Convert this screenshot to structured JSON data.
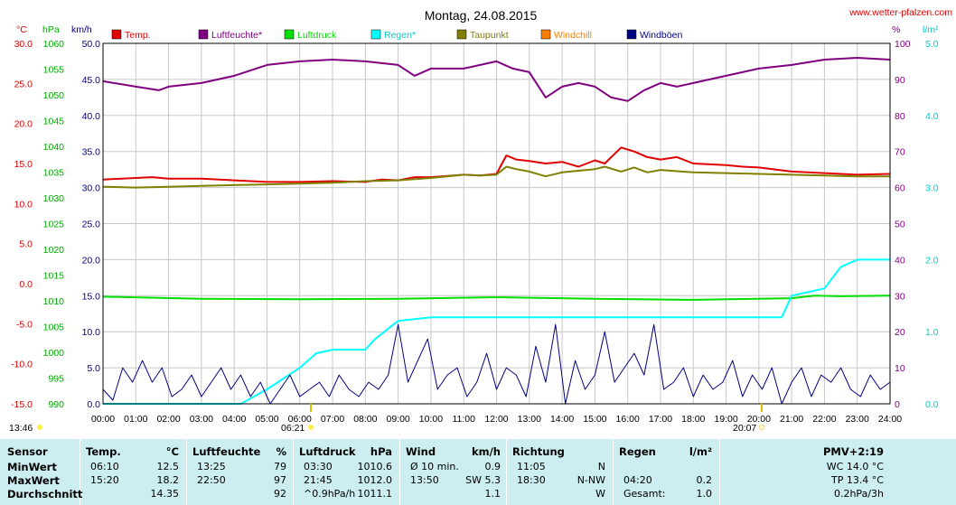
{
  "title": "Montag, 24.08.2015",
  "site": "www.wetter-pfalzen.com",
  "colors": {
    "temp": "#e00000",
    "humidity": "#800080",
    "pressure": "#00dd00",
    "rain": "#00ffff",
    "dewpoint": "#808000",
    "windchill": "#ff8000",
    "gust": "#000080",
    "grid": "#c8c8c8",
    "table_bg": "#cdeef0"
  },
  "axis_units": {
    "temp": "°C",
    "pressure": "hPa",
    "wind": "km/h",
    "humidity": "%",
    "rain": "l/m²"
  },
  "axis_ticks": {
    "temp": [
      "30.0",
      "25.0",
      "20.0",
      "15.0",
      "10.0",
      "5.0",
      "0.0",
      "-5.0",
      "-10.0",
      "-15.0"
    ],
    "pressure": [
      "1060",
      "1055",
      "1050",
      "1045",
      "1040",
      "1035",
      "1030",
      "1025",
      "1020",
      "1015",
      "1010",
      "1005",
      "1000",
      "995",
      "990"
    ],
    "wind": [
      "50.0",
      "45.0",
      "40.0",
      "35.0",
      "30.0",
      "25.0",
      "20.0",
      "15.0",
      "10.0",
      "5.0",
      "0.0"
    ],
    "humidity": [
      "100",
      "90",
      "80",
      "70",
      "60",
      "50",
      "40",
      "30",
      "20",
      "10",
      "0"
    ],
    "rain": [
      "5.0",
      "4.0",
      "3.0",
      "2.0",
      "1.0",
      "0.0"
    ]
  },
  "sun_times": {
    "left_time": "13:46",
    "sunrise": "06:21",
    "sunset": "20:07"
  },
  "chart_data": {
    "type": "line",
    "title": "Montag, 24.08.2015",
    "x_categories": [
      "00:00",
      "01:00",
      "02:00",
      "03:00",
      "04:00",
      "05:00",
      "06:00",
      "07:00",
      "08:00",
      "09:00",
      "10:00",
      "11:00",
      "12:00",
      "13:00",
      "14:00",
      "15:00",
      "16:00",
      "17:00",
      "18:00",
      "19:00",
      "20:00",
      "21:00",
      "22:00",
      "23:00",
      "24:00"
    ],
    "xlim": [
      0,
      24
    ],
    "grid": true,
    "legend_position": "top",
    "series": [
      {
        "name": "Temp.",
        "axis": "°C",
        "ylim": [
          -15,
          30
        ],
        "color_key": "temp",
        "x": [
          0,
          1,
          1.5,
          2,
          3,
          4,
          5,
          6,
          7,
          8,
          8.5,
          9,
          9.5,
          10,
          11,
          11.5,
          12,
          12.3,
          12.6,
          13,
          13.5,
          14,
          14.5,
          15,
          15.3,
          15.8,
          16.2,
          16.6,
          17,
          17.5,
          18,
          18.5,
          19,
          19.5,
          20,
          21,
          22,
          23,
          24
        ],
        "values": [
          13.0,
          13.2,
          13.3,
          13.1,
          13.1,
          12.9,
          12.7,
          12.7,
          12.8,
          12.7,
          13.0,
          12.9,
          13.3,
          13.3,
          13.6,
          13.5,
          13.7,
          16.0,
          15.5,
          15.3,
          15.0,
          15.2,
          14.6,
          15.4,
          15.0,
          17.0,
          16.5,
          15.8,
          15.5,
          15.8,
          15.0,
          14.9,
          14.8,
          14.6,
          14.5,
          14.0,
          13.8,
          13.6,
          13.7
        ]
      },
      {
        "name": "Luftfeuchte*",
        "axis": "%",
        "ylim": [
          0,
          100
        ],
        "color_key": "humidity",
        "x": [
          0,
          1,
          1.7,
          2,
          3,
          4,
          5,
          6,
          7,
          8,
          9,
          9.5,
          10,
          11,
          11.5,
          12,
          12.5,
          13,
          13.5,
          14,
          14.5,
          15,
          15.5,
          16,
          16.5,
          17,
          17.5,
          18,
          19,
          20,
          21,
          22,
          23,
          24
        ],
        "values": [
          89.5,
          88,
          87,
          88,
          89,
          91,
          94,
          95,
          95.5,
          95,
          94,
          91,
          93,
          93,
          94,
          95,
          93,
          92,
          85,
          88,
          89,
          88,
          85,
          84,
          87,
          89,
          88,
          89,
          91,
          93,
          94,
          95.5,
          96,
          95.5
        ]
      },
      {
        "name": "Luftdruck",
        "axis": "hPa",
        "ylim": [
          990,
          1060
        ],
        "color_key": "pressure",
        "x": [
          0,
          3,
          6,
          9,
          12,
          15,
          18,
          21,
          21.7,
          22.5,
          24
        ],
        "values": [
          1010.8,
          1010.4,
          1010.3,
          1010.4,
          1010.7,
          1010.4,
          1010.2,
          1010.5,
          1011.0,
          1010.9,
          1011.0
        ]
      },
      {
        "name": "Regen*",
        "axis": "l/m²",
        "ylim": [
          0,
          5
        ],
        "color_key": "rain",
        "x": [
          0,
          4.2,
          4.4,
          5,
          6,
          6.5,
          7,
          8,
          8.3,
          9,
          10,
          12,
          15,
          18,
          20,
          20.7,
          21,
          22,
          22.5,
          23,
          24
        ],
        "values": [
          0,
          0,
          0.05,
          0.2,
          0.5,
          0.7,
          0.75,
          0.75,
          0.9,
          1.15,
          1.2,
          1.2,
          1.2,
          1.2,
          1.2,
          1.2,
          1.5,
          1.6,
          1.9,
          2.0,
          2.0
        ]
      },
      {
        "name": "Taupunkt",
        "axis": "°C",
        "ylim": [
          -15,
          30
        ],
        "color_key": "dewpoint",
        "x": [
          0,
          1,
          2,
          3,
          4,
          5,
          6,
          7,
          8,
          9,
          10,
          11,
          11.5,
          12,
          12.3,
          12.6,
          13,
          13.5,
          14,
          15,
          15.3,
          15.8,
          16.2,
          16.6,
          17,
          18,
          19,
          20,
          21,
          22,
          23,
          24
        ],
        "values": [
          12.1,
          12.0,
          12.1,
          12.2,
          12.3,
          12.4,
          12.5,
          12.6,
          12.8,
          12.9,
          13.2,
          13.6,
          13.5,
          13.6,
          14.6,
          14.3,
          14.0,
          13.4,
          13.9,
          14.3,
          14.6,
          14.0,
          14.5,
          13.9,
          14.2,
          13.9,
          13.8,
          13.7,
          13.6,
          13.5,
          13.4,
          13.4
        ]
      },
      {
        "name": "Windchill",
        "axis": "°C",
        "ylim": [
          -15,
          30
        ],
        "color_key": "windchill",
        "x": [],
        "values": []
      },
      {
        "name": "Windböen",
        "axis": "km/h",
        "ylim": [
          0,
          50
        ],
        "color_key": "gust",
        "x": [
          0,
          0.3,
          0.6,
          0.9,
          1.2,
          1.5,
          1.8,
          2.1,
          2.4,
          2.7,
          3,
          3.3,
          3.6,
          3.9,
          4.2,
          4.5,
          4.8,
          5.1,
          5.4,
          5.7,
          6,
          6.3,
          6.6,
          6.9,
          7.2,
          7.5,
          7.8,
          8.1,
          8.4,
          8.7,
          9,
          9.3,
          9.6,
          9.9,
          10.2,
          10.5,
          10.8,
          11.1,
          11.4,
          11.7,
          12,
          12.3,
          12.6,
          12.9,
          13.2,
          13.5,
          13.8,
          14.1,
          14.4,
          14.7,
          15,
          15.3,
          15.6,
          15.9,
          16.2,
          16.5,
          16.8,
          17.1,
          17.4,
          17.7,
          18,
          18.3,
          18.6,
          18.9,
          19.2,
          19.5,
          19.8,
          20.1,
          20.4,
          20.7,
          21,
          21.3,
          21.6,
          21.9,
          22.2,
          22.5,
          22.8,
          23.1,
          23.4,
          23.7,
          24
        ],
        "values": [
          2,
          0.5,
          5,
          3,
          6,
          3,
          5,
          1,
          2,
          4,
          1,
          3,
          5,
          2,
          4,
          1,
          3,
          0,
          2,
          4,
          1,
          2,
          3,
          1,
          4,
          2,
          1,
          3,
          2,
          4,
          11,
          3,
          6,
          9,
          2,
          4,
          5,
          1,
          3,
          7,
          2,
          5,
          4,
          1,
          8,
          3,
          11,
          0,
          6,
          2,
          4,
          10,
          3,
          5,
          7,
          4,
          11,
          2,
          3,
          5,
          1,
          4,
          2,
          3,
          6,
          1,
          4,
          2,
          5,
          0,
          3,
          5,
          1,
          4,
          3,
          5,
          2,
          1,
          4,
          2,
          3
        ]
      }
    ]
  },
  "table": {
    "headers": {
      "sensor": "Sensor",
      "temp": "Temp.",
      "temp_unit": "°C",
      "hum": "Luftfeuchte",
      "hum_unit": "%",
      "press": "Luftdruck",
      "press_unit": "hPa",
      "wind": "Wind",
      "wind_unit": "km/h",
      "dir": "Richtung",
      "rain": "Regen",
      "rain_unit": "l/m²",
      "pmv": "PMV+2:19"
    },
    "rows": [
      {
        "label": "MinWert",
        "temp_time": "06:10",
        "temp_val": "12.5",
        "hum_time": "13:25",
        "hum_val": "79",
        "press_time": "03:30",
        "press_val": "1010.6",
        "wind_time": "Ø 10 min.",
        "wind_val": "0.9",
        "dir_time": "11:05",
        "dir_val": "N",
        "rain_time": "",
        "rain_val": "",
        "pmv": "WC 14.0 °C"
      },
      {
        "label": "MaxWert",
        "temp_time": "15:20",
        "temp_val": "18.2",
        "hum_time": "22:50",
        "hum_val": "97",
        "press_time": "21:45",
        "press_val": "1012.0",
        "wind_time": "13:50",
        "wind_val": "SW 5.3",
        "dir_time": "18:30",
        "dir_val": "N-NW",
        "rain_time": "04:20",
        "rain_val": "0.2",
        "pmv": "TP 13.4 °C"
      },
      {
        "label": "Durchschnitt",
        "temp_time": "",
        "temp_val": "14.35",
        "hum_time": "",
        "hum_val": "92",
        "press_time": "^0.9hPa/h",
        "press_val": "1011.1",
        "wind_time": "",
        "wind_val": "1.1",
        "dir_time": "",
        "dir_val": "W",
        "rain_time": "Gesamt:",
        "rain_val": "1.0",
        "pmv": "0.2hPa/3h"
      }
    ]
  }
}
